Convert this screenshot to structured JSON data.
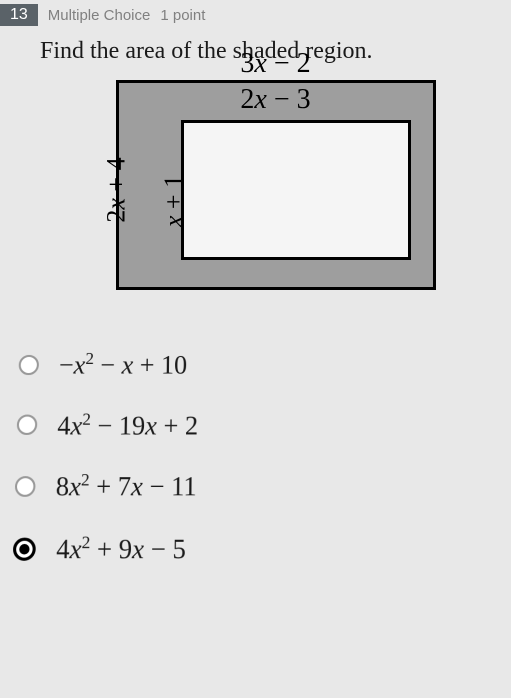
{
  "header": {
    "number": "13",
    "type": "Multiple Choice",
    "points": "1 point"
  },
  "prompt": "Find the area of the shaded region.",
  "figure": {
    "outer_top_label": "3x − 2",
    "inner_top_label": "2x − 3",
    "outer_left_label": "2x + 4",
    "inner_left_label": "x + 1",
    "outer_fill": "#9e9e9e",
    "inner_fill": "#f5f5f5",
    "border_color": "#000000"
  },
  "options": {
    "a": "−x² − x + 10",
    "b": "4x² − 19x + 2",
    "c": "8x² + 7x − 11",
    "d": "4x² + 9x − 5"
  },
  "selected": "d"
}
